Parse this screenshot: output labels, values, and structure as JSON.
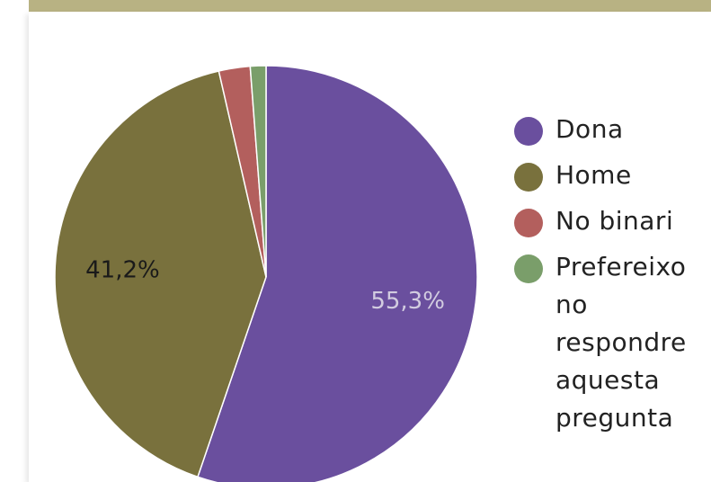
{
  "chart_data": {
    "type": "pie",
    "title": "",
    "slices": [
      {
        "label": "Dona",
        "value": 55.3,
        "display": "55,3%",
        "color": "#6a4f9e"
      },
      {
        "label": "Home",
        "value": 41.2,
        "display": "41,2%",
        "color": "#79713d"
      },
      {
        "label": "No binari",
        "value": 2.4,
        "display": "",
        "color": "#b35f5d"
      },
      {
        "label": "Prefereixo no respondre aquesta pregunta",
        "value": 1.2,
        "display": "",
        "color": "#7a9e6a"
      }
    ],
    "legend_position": "right",
    "label_colors": {
      "Dona": "#d2cce0",
      "Home": "#1a1a1a"
    }
  }
}
